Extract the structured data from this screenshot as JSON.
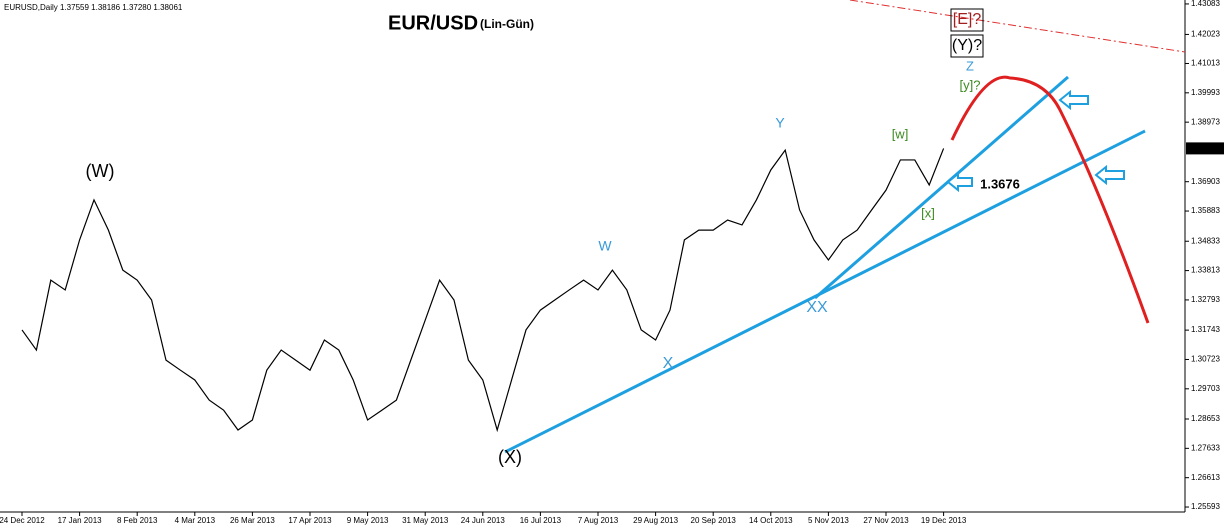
{
  "chart_data": {
    "type": "line",
    "header": "EURUSD,Daily 1.37559 1.38186 1.37280 1.38061",
    "title": "EUR/USD",
    "subtitle": "(Lin-Gün)",
    "categories": [
      "24 Dec 2012",
      null,
      null,
      null,
      "17 Jan 2013",
      null,
      null,
      null,
      "8 Feb 2013",
      null,
      null,
      null,
      "4 Mar 2013",
      null,
      null,
      null,
      "26 Mar 2013",
      null,
      null,
      null,
      "17 Apr 2013",
      null,
      null,
      null,
      "9 May 2013",
      null,
      null,
      null,
      "31 May 2013",
      null,
      null,
      null,
      "24 Jun 2013",
      null,
      null,
      null,
      "16 Jul 2013",
      null,
      null,
      null,
      "7 Aug 2013",
      null,
      null,
      null,
      "29 Aug 2013",
      null,
      null,
      null,
      "20 Sep 2013",
      null,
      null,
      null,
      "14 Oct 2013",
      null,
      null,
      null,
      "5 Nov 2013",
      null,
      null,
      null,
      "27 Nov 2013",
      null,
      null,
      null,
      "19 Dec 2013"
    ],
    "values": [
      1.3175,
      1.3105,
      1.3348,
      1.3314,
      1.3488,
      1.3627,
      1.3522,
      1.3383,
      1.3348,
      1.3279,
      1.307,
      1.3035,
      1.3001,
      1.2931,
      1.2896,
      1.2827,
      1.2862,
      1.3035,
      1.3105,
      1.307,
      1.3035,
      1.314,
      1.3105,
      1.3001,
      1.2862,
      1.2896,
      1.2931,
      1.307,
      1.3209,
      1.3348,
      1.3279,
      1.307,
      1.3001,
      1.2827,
      1.3001,
      1.3175,
      1.3244,
      1.3279,
      1.3314,
      1.3348,
      1.3314,
      1.3383,
      1.3314,
      1.3175,
      1.314,
      1.3244,
      1.3488,
      1.3522,
      1.3522,
      1.3557,
      1.354,
      1.3627,
      1.3731,
      1.38,
      1.3592,
      1.3488,
      1.3418,
      1.3488,
      1.3522,
      1.3592,
      1.3661,
      1.3766,
      1.3766,
      1.3679,
      1.3806
    ],
    "color": "#000000",
    "ylim": [
      1.2542,
      1.4322
    ],
    "yticks": [
      1.43083,
      1.42023,
      1.41013,
      1.39993,
      1.38973,
      1.36903,
      1.35883,
      1.34833,
      1.33813,
      1.32793,
      1.31743,
      1.30723,
      1.29703,
      1.28653,
      1.27633,
      1.26613,
      1.25593
    ],
    "last_price": 1.38061,
    "annotations": [
      "(W)",
      "W",
      "X",
      "Y",
      "XX",
      "(X)",
      "[w]",
      "[x]",
      "[y]?",
      "Z",
      "[E]?",
      "(Y)?",
      "1.3676"
    ]
  }
}
